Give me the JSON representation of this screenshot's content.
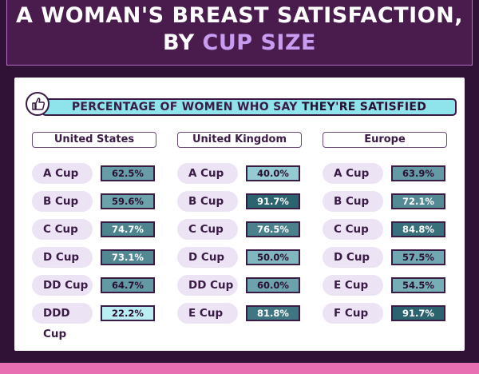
{
  "header": {
    "title_line1": "A WOMAN'S BREAST SATISFACTION,",
    "title_line2_prefix": "BY ",
    "title_line2_highlight": "CUP SIZE"
  },
  "banner": {
    "text_prefix": "PERCENTAGE OF WOMEN WHO SAY ",
    "text_emphasis": "THEY'RE SATISFIED",
    "icon": "thumbs-up-icon"
  },
  "colors": {
    "scale_low": "#bdf2f7",
    "scale_high": "#245c68",
    "text_light": "#ffffff",
    "text_dark": "#2a0f33"
  },
  "chart_data": {
    "type": "table",
    "title": "PERCENTAGE OF WOMEN WHO SAY THEY'RE SATISFIED",
    "unit": "%",
    "groups": [
      {
        "name": "United States",
        "rows": [
          {
            "cup": "A Cup",
            "value": 62.5,
            "label": "62.5%"
          },
          {
            "cup": "B Cup",
            "value": 59.6,
            "label": "59.6%"
          },
          {
            "cup": "C Cup",
            "value": 74.7,
            "label": "74.7%"
          },
          {
            "cup": "D Cup",
            "value": 73.1,
            "label": "73.1%"
          },
          {
            "cup": "DD Cup",
            "value": 64.7,
            "label": "64.7%"
          },
          {
            "cup": "DDD Cup",
            "value": 22.2,
            "label": "22.2%"
          }
        ]
      },
      {
        "name": "United Kingdom",
        "rows": [
          {
            "cup": "A Cup",
            "value": 40.0,
            "label": "40.0%"
          },
          {
            "cup": "B Cup",
            "value": 91.7,
            "label": "91.7%"
          },
          {
            "cup": "C Cup",
            "value": 76.5,
            "label": "76.5%"
          },
          {
            "cup": "D Cup",
            "value": 50.0,
            "label": "50.0%"
          },
          {
            "cup": "DD Cup",
            "value": 60.0,
            "label": "60.0%"
          },
          {
            "cup": "E Cup",
            "value": 81.8,
            "label": "81.8%"
          }
        ]
      },
      {
        "name": "Europe",
        "rows": [
          {
            "cup": "A Cup",
            "value": 63.9,
            "label": "63.9%"
          },
          {
            "cup": "B Cup",
            "value": 72.1,
            "label": "72.1%"
          },
          {
            "cup": "C Cup",
            "value": 84.8,
            "label": "84.8%"
          },
          {
            "cup": "D Cup",
            "value": 57.5,
            "label": "57.5%"
          },
          {
            "cup": "E Cup",
            "value": 54.5,
            "label": "54.5%"
          },
          {
            "cup": "F Cup",
            "value": 91.7,
            "label": "91.7%"
          }
        ]
      }
    ]
  }
}
